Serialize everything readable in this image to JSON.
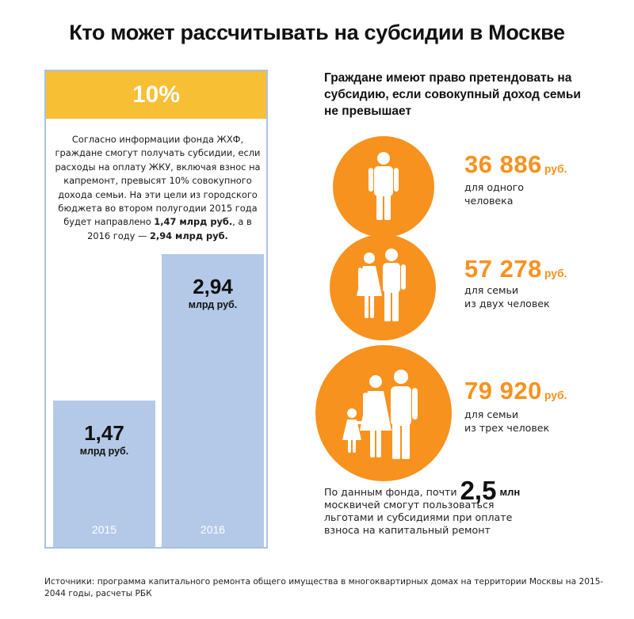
{
  "title": "Кто может рассчитывать на субсидии в Москве",
  "panel": {
    "header": "10%",
    "text_before_1": "Согласно информации фонда ЖХФ, граждане смогут получать субсидии, если расходы на оплату ЖКУ, включая взнос на капремонт, превысят 10% совокупного дохода семьи. На эти цели из городского бюджета во втором полугодии 2015 года будет направлено ",
    "text_bold_1": "1,47 млрд руб.",
    "text_mid": ", а в 2016 году — ",
    "text_bold_2": "2,94 млрд руб."
  },
  "chart_data": {
    "type": "bar",
    "categories": [
      "2015",
      "2016"
    ],
    "values": [
      1.47,
      2.94
    ],
    "value_labels": [
      "1,47",
      "2,94"
    ],
    "unit": "млрд руб.",
    "bar_color": "#b4c9e8"
  },
  "right": {
    "heading": "Граждане имеют право претендовать на субсидию, если совокупный доход семьи не превышает",
    "items": [
      {
        "amount": "36 886",
        "currency": "руб.",
        "desc_line1": "для одного",
        "desc_line2": "человека",
        "icon": "single-person-icon"
      },
      {
        "amount": "57 278",
        "currency": "руб.",
        "desc_line1": "для семьи",
        "desc_line2": "из двух человек",
        "icon": "couple-icon"
      },
      {
        "amount": "79 920",
        "currency": "руб.",
        "desc_line1": "для семьи",
        "desc_line2": "из трех человек",
        "icon": "family-icon"
      }
    ],
    "note": {
      "prefix": "По данным фонда, почти ",
      "big": "2,5",
      "unit": "млн",
      "line2": "москвичей смогут пользоваться",
      "line3": "льготами и субсидиями при оплате",
      "line4": "взноса на капитальный ремонт"
    }
  },
  "sources": {
    "label": "Источники:",
    "text": " программа капитального ремонта общего имущества в многоквартирных домах на территории Москвы на 2015-2044 годы, расчеты РБК"
  },
  "colors": {
    "orange": "#f7921e",
    "yellow": "#f7bf33",
    "bar_blue": "#b4c9e8",
    "panel_border": "#a9c1e3"
  }
}
